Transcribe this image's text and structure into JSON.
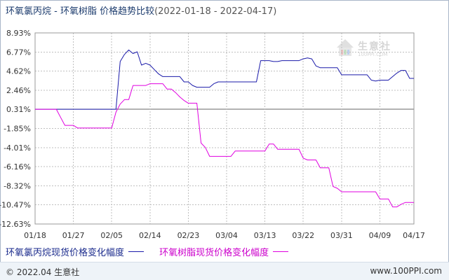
{
  "title": {
    "main": "环氧氯丙烷 - 环氧树脂 价格趋势比较",
    "range": "(2022-01-18 - 2022-04-17)"
  },
  "watermark": {
    "text": "生意社",
    "url": "100PPI.COM",
    "icon": "house-logo-icon"
  },
  "legend": {
    "series1": "环氧氯丙烷现货价格变化幅度",
    "series2": "环氧树脂现货价格变化幅度"
  },
  "footer": {
    "left": "© 2022.04 生意社",
    "right": "www.100PPI.com"
  },
  "colors": {
    "series1": "#1a1aaa",
    "series2": "#e000e0",
    "grid": "#bfbfbf",
    "zero": "#666666"
  },
  "chart_data": {
    "type": "line",
    "ylim": [
      -12.63,
      8.93
    ],
    "yticks": [
      "8.93%",
      "6.77%",
      "4.62%",
      "2.46%",
      "0.31%",
      "-1.85%",
      "-4.01%",
      "-6.16%",
      "-8.32%",
      "-10.47%",
      "-12.63%"
    ],
    "yvalues": [
      8.93,
      6.77,
      4.62,
      2.46,
      0.31,
      -1.85,
      -4.01,
      -6.16,
      -8.32,
      -10.47,
      -12.63
    ],
    "xlim": [
      0,
      89
    ],
    "xticks": [
      "01/18",
      "01/27",
      "02/05",
      "02/14",
      "02/23",
      "03/04",
      "03/13",
      "03/22",
      "03/31",
      "04/09",
      "04/17"
    ],
    "xtick_days": [
      0,
      9,
      18,
      27,
      36,
      45,
      54,
      63,
      72,
      81,
      89
    ],
    "series": [
      {
        "name": "环氧氯丙烷现货价格变化幅度",
        "points": [
          [
            0,
            0.31
          ],
          [
            18,
            0.31
          ],
          [
            19,
            0.31
          ],
          [
            20,
            5.7
          ],
          [
            21,
            6.5
          ],
          [
            22,
            7.0
          ],
          [
            23,
            6.6
          ],
          [
            24,
            6.8
          ],
          [
            25,
            5.3
          ],
          [
            26,
            5.5
          ],
          [
            27,
            5.3
          ],
          [
            28,
            4.8
          ],
          [
            29,
            4.3
          ],
          [
            30,
            4.0
          ],
          [
            31,
            4.0
          ],
          [
            32,
            4.0
          ],
          [
            33,
            4.0
          ],
          [
            34,
            4.0
          ],
          [
            35,
            3.4
          ],
          [
            36,
            3.4
          ],
          [
            37,
            3.0
          ],
          [
            38,
            2.8
          ],
          [
            39,
            2.8
          ],
          [
            40,
            2.8
          ],
          [
            41,
            2.8
          ],
          [
            42,
            3.2
          ],
          [
            43,
            3.4
          ],
          [
            44,
            3.4
          ],
          [
            45,
            3.4
          ],
          [
            46,
            3.4
          ],
          [
            47,
            3.4
          ],
          [
            48,
            3.4
          ],
          [
            49,
            3.4
          ],
          [
            50,
            3.4
          ],
          [
            51,
            3.4
          ],
          [
            52,
            3.4
          ],
          [
            53,
            5.8
          ],
          [
            54,
            5.8
          ],
          [
            55,
            5.8
          ],
          [
            56,
            5.7
          ],
          [
            57,
            5.7
          ],
          [
            58,
            5.8
          ],
          [
            59,
            5.8
          ],
          [
            60,
            5.8
          ],
          [
            61,
            5.8
          ],
          [
            62,
            5.8
          ],
          [
            63,
            6.0
          ],
          [
            64,
            6.1
          ],
          [
            65,
            6.0
          ],
          [
            66,
            5.2
          ],
          [
            67,
            5.0
          ],
          [
            68,
            5.0
          ],
          [
            69,
            5.0
          ],
          [
            70,
            5.0
          ],
          [
            71,
            5.0
          ],
          [
            72,
            4.2
          ],
          [
            73,
            4.2
          ],
          [
            74,
            4.2
          ],
          [
            75,
            4.2
          ],
          [
            76,
            4.2
          ],
          [
            77,
            4.2
          ],
          [
            78,
            4.2
          ],
          [
            79,
            3.6
          ],
          [
            80,
            3.5
          ],
          [
            81,
            3.6
          ],
          [
            82,
            3.6
          ],
          [
            83,
            3.6
          ],
          [
            84,
            4.0
          ],
          [
            85,
            4.4
          ],
          [
            86,
            4.7
          ],
          [
            87,
            4.7
          ],
          [
            88,
            3.8
          ],
          [
            89,
            3.8
          ]
        ]
      },
      {
        "name": "环氧树脂现货价格变化幅度",
        "points": [
          [
            0,
            0.31
          ],
          [
            5,
            0.31
          ],
          [
            6,
            -0.6
          ],
          [
            7,
            -1.5
          ],
          [
            8,
            -1.5
          ],
          [
            9,
            -1.5
          ],
          [
            10,
            -1.8
          ],
          [
            11,
            -1.8
          ],
          [
            12,
            -1.8
          ],
          [
            13,
            -1.8
          ],
          [
            14,
            -1.8
          ],
          [
            15,
            -1.8
          ],
          [
            16,
            -1.8
          ],
          [
            17,
            -1.8
          ],
          [
            18,
            -1.8
          ],
          [
            19,
            0.0
          ],
          [
            20,
            0.9
          ],
          [
            21,
            1.4
          ],
          [
            22,
            1.4
          ],
          [
            23,
            3.0
          ],
          [
            24,
            3.0
          ],
          [
            25,
            3.0
          ],
          [
            26,
            3.0
          ],
          [
            27,
            3.2
          ],
          [
            28,
            3.2
          ],
          [
            29,
            3.2
          ],
          [
            30,
            3.2
          ],
          [
            31,
            2.6
          ],
          [
            32,
            2.6
          ],
          [
            33,
            2.2
          ],
          [
            34,
            1.7
          ],
          [
            35,
            1.3
          ],
          [
            36,
            1.0
          ],
          [
            37,
            1.0
          ],
          [
            38,
            1.0
          ],
          [
            39,
            -3.5
          ],
          [
            40,
            -4.0
          ],
          [
            41,
            -5.0
          ],
          [
            42,
            -5.0
          ],
          [
            43,
            -5.0
          ],
          [
            44,
            -5.0
          ],
          [
            45,
            -5.0
          ],
          [
            46,
            -5.0
          ],
          [
            47,
            -4.4
          ],
          [
            48,
            -4.4
          ],
          [
            49,
            -4.4
          ],
          [
            50,
            -4.4
          ],
          [
            51,
            -4.4
          ],
          [
            52,
            -4.4
          ],
          [
            53,
            -4.4
          ],
          [
            54,
            -4.4
          ],
          [
            55,
            -3.6
          ],
          [
            56,
            -3.6
          ],
          [
            57,
            -4.2
          ],
          [
            58,
            -4.2
          ],
          [
            59,
            -4.2
          ],
          [
            60,
            -4.2
          ],
          [
            61,
            -4.2
          ],
          [
            62,
            -4.2
          ],
          [
            63,
            -5.2
          ],
          [
            64,
            -5.4
          ],
          [
            65,
            -5.4
          ],
          [
            66,
            -5.4
          ],
          [
            67,
            -6.3
          ],
          [
            68,
            -6.3
          ],
          [
            69,
            -6.3
          ],
          [
            70,
            -8.4
          ],
          [
            71,
            -8.6
          ],
          [
            72,
            -9.0
          ],
          [
            73,
            -9.0
          ],
          [
            74,
            -9.0
          ],
          [
            75,
            -9.0
          ],
          [
            76,
            -9.0
          ],
          [
            77,
            -9.0
          ],
          [
            78,
            -9.0
          ],
          [
            79,
            -9.0
          ],
          [
            80,
            -9.0
          ],
          [
            81,
            -9.8
          ],
          [
            82,
            -9.8
          ],
          [
            83,
            -9.8
          ],
          [
            84,
            -10.7
          ],
          [
            85,
            -10.7
          ],
          [
            86,
            -10.4
          ],
          [
            87,
            -10.2
          ],
          [
            88,
            -10.2
          ],
          [
            89,
            -10.2
          ]
        ]
      }
    ]
  }
}
